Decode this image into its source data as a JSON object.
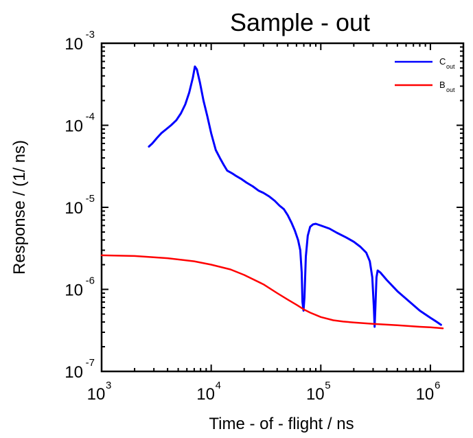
{
  "chart_data": {
    "type": "line",
    "title": "Sample - out",
    "xlabel": "Time - of - flight / ns",
    "ylabel": "Response / (1/ ns)",
    "xscale": "log",
    "yscale": "log",
    "xlim": [
      1000,
      2000000
    ],
    "ylim": [
      1e-07,
      0.001
    ],
    "grid": false,
    "legend_position": "top-right",
    "x_ticks": [
      {
        "base": "10",
        "exp": "3",
        "value": 1000
      },
      {
        "base": "10",
        "exp": "4",
        "value": 10000
      },
      {
        "base": "10",
        "exp": "5",
        "value": 100000
      },
      {
        "base": "10",
        "exp": "6",
        "value": 1000000
      }
    ],
    "y_ticks": [
      {
        "base": "10",
        "exp": "-7",
        "value": 1e-07
      },
      {
        "base": "10",
        "exp": "-6",
        "value": 1e-06
      },
      {
        "base": "10",
        "exp": "-5",
        "value": 1e-05
      },
      {
        "base": "10",
        "exp": "-4",
        "value": 0.0001
      },
      {
        "base": "10",
        "exp": "-3",
        "value": 0.001
      }
    ],
    "series": [
      {
        "name": "C",
        "name_sub": "out",
        "color": "#0000ff",
        "x": [
          2700,
          2900,
          3200,
          3500,
          3900,
          4300,
          4800,
          5300,
          5800,
          6300,
          6800,
          7100,
          7400,
          7900,
          8500,
          9200,
          10000,
          11000,
          12000,
          13000,
          14000,
          15500,
          17000,
          19000,
          21000,
          24000,
          27000,
          30000,
          34000,
          38000,
          42000,
          46000,
          50000,
          54000,
          58000,
          62000,
          65000,
          67000,
          68000,
          69500,
          71000,
          73000,
          76000,
          80000,
          85000,
          90000,
          100000,
          120000,
          140000,
          170000,
          200000,
          230000,
          260000,
          280000,
          295000,
          305000,
          310000,
          315000,
          322000,
          330000,
          350000,
          400000,
          500000,
          650000,
          800000,
          1000000,
          1150000,
          1250000
        ],
        "y": [
          5.5e-05,
          6e-05,
          7e-05,
          8e-05,
          9e-05,
          0.0001,
          0.000115,
          0.00014,
          0.00018,
          0.00025,
          0.00038,
          0.00052,
          0.00048,
          0.00033,
          0.0002,
          0.00013,
          8e-05,
          5e-05,
          4e-05,
          3.3e-05,
          2.8e-05,
          2.6e-05,
          2.4e-05,
          2.2e-05,
          2e-05,
          1.8e-05,
          1.6e-05,
          1.5e-05,
          1.35e-05,
          1.2e-05,
          1.05e-05,
          9.5e-06,
          8e-06,
          6.5e-06,
          5.2e-06,
          4e-06,
          3e-06,
          1.6e-06,
          7e-07,
          5.5e-07,
          8e-07,
          2.5e-06,
          4.5e-06,
          5.8e-06,
          6.2e-06,
          6.3e-06,
          6e-06,
          5.5e-06,
          4.9e-06,
          4.3e-06,
          3.8e-06,
          3.3e-06,
          2.8e-06,
          2.2e-06,
          1.4e-06,
          6e-07,
          3.5e-07,
          6e-07,
          1.4e-06,
          1.7e-06,
          1.6e-06,
          1.3e-06,
          9.5e-07,
          7e-07,
          5.5e-07,
          4.5e-07,
          4e-07,
          3.7e-07
        ]
      },
      {
        "name": "B",
        "name_sub": "out",
        "color": "#ff0000",
        "x": [
          1000,
          2000,
          4000,
          7000,
          10000,
          15000,
          20000,
          30000,
          40000,
          50000,
          60000,
          70000,
          80000,
          100000,
          130000,
          160000,
          200000,
          300000,
          500000,
          800000,
          1000000,
          1300000
        ],
        "y": [
          2.6e-06,
          2.55e-06,
          2.4e-06,
          2.2e-06,
          2e-06,
          1.75e-06,
          1.5e-06,
          1.15e-06,
          9e-07,
          7.5e-07,
          6.5e-07,
          5.7e-07,
          5.2e-07,
          4.6e-07,
          4.2e-07,
          4.05e-07,
          3.95e-07,
          3.8e-07,
          3.65e-07,
          3.5e-07,
          3.45e-07,
          3.35e-07
        ]
      }
    ]
  }
}
